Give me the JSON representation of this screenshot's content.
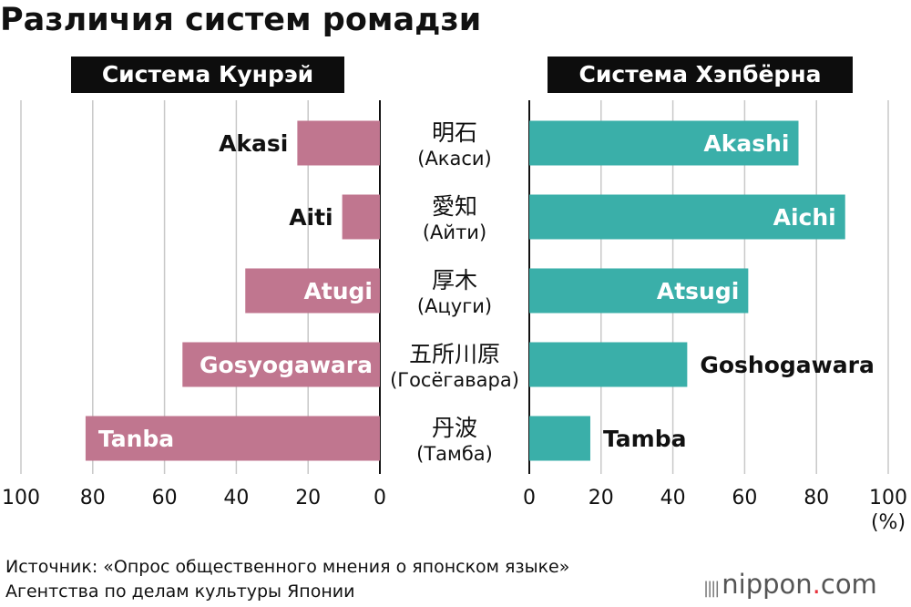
{
  "title": "Различия систем ромадзи",
  "brand": {
    "name": "nippon",
    "dot": ".",
    "suffix": "com"
  },
  "source": {
    "line1": "Источник: «Опрос общественного мнения о японском языке»",
    "line2": "Агентства по делам культуры Японии"
  },
  "colors": {
    "kunrei": "#c0768f",
    "hepburn": "#3aafa9",
    "grid": "#c8c8c8",
    "axis": "#111111"
  },
  "chart_data": {
    "type": "bar",
    "orientation": "horizontal",
    "unit": "(%)",
    "categories": [
      {
        "kanji": "明石",
        "reading": "(Акаси)"
      },
      {
        "kanji": "愛知",
        "reading": "(Айти)"
      },
      {
        "kanji": "厚木",
        "reading": "(Ацуги)"
      },
      {
        "kanji": "五所川原",
        "reading": "(Госёгавара)"
      },
      {
        "kanji": "丹波",
        "reading": "(Тамба)"
      }
    ],
    "panels": [
      {
        "name": "Система Кунрэй",
        "direction": "left",
        "xlim": [
          0,
          100
        ],
        "ticks": [
          "100",
          "80",
          "60",
          "40",
          "20",
          "0"
        ],
        "labels": [
          "Akasi",
          "Aiti",
          "Atugi",
          "Gosyogawara",
          "Tanba"
        ],
        "values": [
          23,
          10.5,
          37.5,
          55,
          82
        ]
      },
      {
        "name": "Система Хэпбёрна",
        "direction": "right",
        "xlim": [
          0,
          100
        ],
        "ticks": [
          "0",
          "20",
          "40",
          "60",
          "80",
          "100"
        ],
        "labels": [
          "Akashi",
          "Aichi",
          "Atsugi",
          "Goshogawara",
          "Tamba"
        ],
        "values": [
          75,
          88,
          61,
          44,
          17
        ]
      }
    ]
  }
}
